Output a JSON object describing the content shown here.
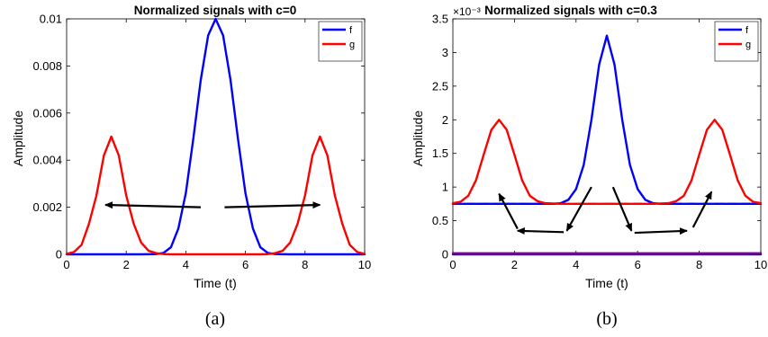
{
  "chart_data": [
    {
      "type": "line",
      "title": "Normalized signals with c=0",
      "xlabel": "Time (t)",
      "ylabel": "Amplitude",
      "xlim": [
        0,
        10
      ],
      "ylim": [
        0,
        0.01
      ],
      "xticks": [
        "0",
        "2",
        "4",
        "6",
        "8",
        "10"
      ],
      "yticks": [
        "0",
        "0.002",
        "0.004",
        "0.006",
        "0.008",
        "0.01"
      ],
      "ytick_values": [
        0,
        0.002,
        0.004,
        0.006,
        0.008,
        0.01
      ],
      "exponent_label": "",
      "legend_position": "top-right",
      "caption": "(a)",
      "series": [
        {
          "name": "f",
          "color": "#0000ff",
          "x": [
            0,
            0.5,
            1,
            1.5,
            2,
            2.5,
            3,
            3.25,
            3.5,
            3.75,
            4,
            4.25,
            4.5,
            4.75,
            5,
            5.25,
            5.5,
            5.75,
            6,
            6.25,
            6.5,
            6.75,
            7,
            7.5,
            8,
            8.5,
            9,
            9.5,
            10
          ],
          "y": [
            0,
            0,
            0,
            0,
            0,
            0,
            1e-05,
            6e-05,
            0.0003,
            0.0011,
            0.0026,
            0.0049,
            0.0074,
            0.0093,
            0.01,
            0.0093,
            0.0074,
            0.0049,
            0.0026,
            0.0011,
            0.0003,
            6e-05,
            1e-05,
            0,
            0,
            0,
            0,
            0,
            0
          ]
        },
        {
          "name": "g",
          "color": "#ff0000",
          "x": [
            0,
            0.25,
            0.5,
            0.75,
            1,
            1.25,
            1.5,
            1.75,
            2,
            2.25,
            2.5,
            2.75,
            3,
            3.25,
            3.5,
            4,
            5,
            6,
            6.5,
            6.75,
            7,
            7.25,
            7.5,
            7.75,
            8,
            8.25,
            8.5,
            8.75,
            9,
            9.25,
            9.5,
            9.75,
            10
          ],
          "y": [
            2e-05,
            0.0001,
            0.0004,
            0.0013,
            0.0025,
            0.0042,
            0.005,
            0.0042,
            0.0025,
            0.0013,
            0.0005,
            0.00015,
            5e-05,
            1e-05,
            0,
            0,
            0,
            0,
            0,
            1e-05,
            5e-05,
            0.00015,
            0.0005,
            0.0013,
            0.0025,
            0.0042,
            0.005,
            0.0042,
            0.0025,
            0.0013,
            0.0004,
            0.0001,
            2e-05
          ]
        }
      ],
      "dashed_lines": [],
      "arrows": [
        {
          "from": [
            4.5,
            0.002
          ],
          "to": [
            1.3,
            0.0021
          ]
        },
        {
          "from": [
            5.3,
            0.002
          ],
          "to": [
            8.5,
            0.0021
          ]
        }
      ]
    },
    {
      "type": "line",
      "title": "Normalized signals with c=0.3",
      "xlabel": "Time (t)",
      "ylabel": "Amplitude",
      "xlim": [
        0,
        10
      ],
      "ylim": [
        0,
        3.5
      ],
      "xticks": [
        "0",
        "2",
        "4",
        "6",
        "8",
        "10"
      ],
      "yticks": [
        "0",
        "0.5",
        "1",
        "1.5",
        "2",
        "2.5",
        "3",
        "3.5"
      ],
      "ytick_values": [
        0,
        0.5,
        1,
        1.5,
        2,
        2.5,
        3,
        3.5
      ],
      "exponent_label": "×10⁻³",
      "legend_position": "top-right",
      "caption": "(b)",
      "series": [
        {
          "name": "f",
          "color": "#0000ff",
          "x": [
            0,
            1,
            2,
            3,
            3.25,
            3.5,
            3.75,
            4,
            4.25,
            4.5,
            4.75,
            5,
            5.25,
            5.5,
            5.75,
            6,
            6.25,
            6.5,
            6.75,
            7,
            8,
            9,
            10
          ],
          "y": [
            0.75,
            0.75,
            0.75,
            0.75,
            0.75,
            0.76,
            0.81,
            0.97,
            1.33,
            2.0,
            2.82,
            3.25,
            2.82,
            2.0,
            1.33,
            0.97,
            0.81,
            0.76,
            0.75,
            0.75,
            0.75,
            0.75,
            0.75
          ]
        },
        {
          "name": "g",
          "color": "#ff0000",
          "x": [
            0,
            0.25,
            0.5,
            0.75,
            1,
            1.25,
            1.5,
            1.75,
            2,
            2.25,
            2.5,
            2.75,
            3,
            3.5,
            4,
            5,
            6,
            6.5,
            7,
            7.25,
            7.5,
            7.75,
            8,
            8.25,
            8.5,
            8.75,
            9,
            9.25,
            9.5,
            9.75,
            10
          ],
          "y": [
            0.76,
            0.78,
            0.87,
            1.1,
            1.48,
            1.85,
            2.0,
            1.85,
            1.48,
            1.1,
            0.87,
            0.79,
            0.76,
            0.75,
            0.75,
            0.75,
            0.75,
            0.75,
            0.76,
            0.79,
            0.87,
            1.1,
            1.48,
            1.85,
            2.0,
            1.85,
            1.48,
            1.1,
            0.87,
            0.78,
            0.76
          ]
        },
        {
          "name": "",
          "color": "#0000ff",
          "x": [
            0,
            10
          ],
          "y": [
            0,
            0
          ]
        },
        {
          "name": "",
          "color": "#7a00a0",
          "x": [
            0,
            10
          ],
          "y": [
            0.015,
            0.015
          ]
        }
      ],
      "dashed_lines": [
        {
          "color": "#ff0000",
          "x": [
            0,
            5
          ],
          "y": [
            0.75,
            0.75
          ]
        },
        {
          "color": "#0000ff",
          "x": [
            5,
            10
          ],
          "y": [
            0.75,
            0.75
          ]
        }
      ],
      "arrows": [
        {
          "from": [
            4.5,
            1.0
          ],
          "to": [
            3.7,
            0.35
          ]
        },
        {
          "from": [
            3.6,
            0.33
          ],
          "to": [
            2.1,
            0.35
          ]
        },
        {
          "from": [
            2.1,
            0.38
          ],
          "to": [
            1.5,
            0.9
          ]
        },
        {
          "from": [
            5.2,
            1.0
          ],
          "to": [
            5.8,
            0.35
          ]
        },
        {
          "from": [
            5.9,
            0.32
          ],
          "to": [
            7.6,
            0.35
          ]
        },
        {
          "from": [
            7.8,
            0.4
          ],
          "to": [
            8.4,
            0.93
          ]
        }
      ]
    }
  ]
}
